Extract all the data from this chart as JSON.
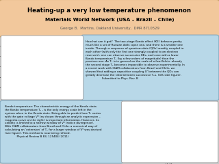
{
  "title_line1": "Heating-up a very low temperature phenomenon",
  "title_line2": "Materials World Network (USA – Brazil – Chile)",
  "title_line3": "George B.  Martins, Oakland University,  DMR 8710529",
  "title_bg": "#f2c89c",
  "title_border": "#c8a06a",
  "box_bg": "#b8d8e8",
  "box_border": "#80a8c0",
  "bg_color": "#c8c8c8",
  "box1_text": "How hot can it get?  The two-stage Kondo effect (KE) behaves pretty\nmuch like a set of Russian dolls: open one, and there is a smaller one\ninside. Through a sequence of quantum dots (QDs) weakly coupled to\neach other (with only the first one strongly coupled to an electron\nreservoir), one can observe successive KEs, each one with a lower\nKondo temperature Tₖ (by a few orders of magnitude) than the\nprevious one. As Tₖ is in general on the scale of a few Kelvin, already\nthe second stage Tₖ becomes impossible to observe experimentally. In\na recent work with CIAM collaborators from Brazil and Chile, we\nshowed that adding a capacitive coupling U' between the QDs can\ngreatly decrease the ratio between successive Tₖs. (left-side figure).\n                   Submitted to Phys. Rev. B",
  "box2_text": "Kondo temperature: The characteristic energy of the Kondo state,\nthe Kondo temperature Tₖ , is the only energy scale left in the\nsystem when in the Kondo state. Being able to predict how Tₖ varies\nwith the gate voltage Vᵍ (as shown through an analytic expression –\nmagenta curve on the right) is important information. However, its\nvalidity is limited to a narrow window of Vᵍ (notice divergence).\nWith CIAM collaborators from Brazil and Chile, a numerical way of\ncalculating an 'extension' of Tₖ for a larger window of Vᵍ was devised\n(see figure). This method is now being refined.\n              Physical Review B 83, 125404 (2011)"
}
